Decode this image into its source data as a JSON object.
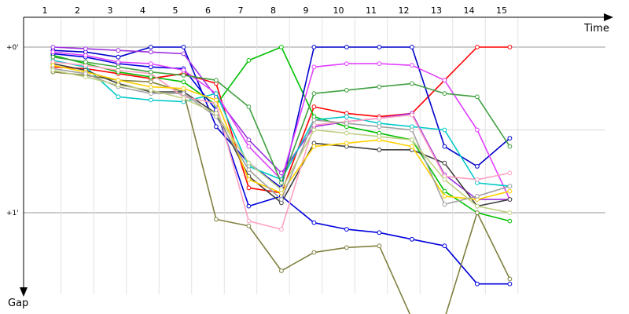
{
  "chart_data": {
    "type": "line",
    "x_axis_title": "Time",
    "y_axis_title": "Gap",
    "laps": [
      1,
      2,
      3,
      4,
      5,
      6,
      7,
      8,
      9,
      10,
      11,
      12,
      13,
      14,
      15
    ],
    "y_ticks": [
      {
        "value": 0,
        "label": "+0'"
      },
      {
        "value": 1,
        "label": "+1'"
      }
    ],
    "ylim": [
      -0.3,
      1.5
    ],
    "series": [
      {
        "color": "#ff0000",
        "values": [
          0.12,
          0.13,
          0.16,
          0.19,
          0.16,
          0.22,
          0.85,
          0.88,
          0.36,
          0.4,
          0.42,
          0.4,
          0.2,
          0.0,
          0.0
        ]
      },
      {
        "color": "#00c000",
        "values": [
          0.05,
          0.1,
          0.15,
          0.18,
          0.21,
          0.35,
          0.08,
          0.0,
          0.42,
          0.48,
          0.52,
          0.56,
          0.87,
          1.0,
          1.05
        ]
      },
      {
        "color": "#0000cc",
        "values": [
          0.02,
          0.03,
          0.06,
          0.0,
          0.0,
          0.48,
          0.7,
          0.85,
          0.0,
          0.0,
          0.0,
          0.0,
          0.6,
          0.72,
          0.55
        ]
      },
      {
        "color": "#0000dd",
        "values": [
          0.04,
          0.06,
          0.1,
          0.12,
          0.13,
          0.38,
          0.96,
          0.9,
          1.06,
          1.1,
          1.12,
          1.16,
          1.2,
          1.43,
          1.43
        ]
      },
      {
        "color": "#a030e0",
        "values": [
          0.0,
          0.01,
          0.02,
          0.03,
          0.04,
          0.3,
          0.56,
          0.76,
          0.48,
          0.45,
          0.43,
          0.4,
          0.77,
          0.92,
          0.92
        ]
      },
      {
        "color": "#e040ff",
        "values": [
          0.03,
          0.05,
          0.09,
          0.1,
          0.14,
          0.28,
          0.6,
          0.8,
          0.12,
          0.1,
          0.1,
          0.11,
          0.2,
          0.5,
          0.92
        ]
      },
      {
        "color": "#00c8c8",
        "values": [
          0.08,
          0.12,
          0.3,
          0.32,
          0.33,
          0.28,
          0.72,
          0.8,
          0.44,
          0.42,
          0.46,
          0.48,
          0.5,
          0.82,
          0.84
        ]
      },
      {
        "color": "#808040",
        "values": [
          0.15,
          0.17,
          0.2,
          0.21,
          0.27,
          1.04,
          1.08,
          1.35,
          1.24,
          1.21,
          1.2,
          1.64,
          1.64,
          1.0,
          1.4
        ]
      },
      {
        "color": "#404040",
        "values": [
          0.1,
          0.14,
          0.22,
          0.27,
          0.27,
          0.4,
          0.78,
          0.94,
          0.58,
          0.6,
          0.62,
          0.62,
          0.7,
          0.96,
          0.92
        ]
      },
      {
        "color": "#ffa0c0",
        "values": [
          0.09,
          0.11,
          0.14,
          0.16,
          0.3,
          0.34,
          1.05,
          1.1,
          0.47,
          0.45,
          0.43,
          0.41,
          0.78,
          0.8,
          0.76
        ]
      },
      {
        "color": "#ffd000",
        "values": [
          0.11,
          0.15,
          0.2,
          0.24,
          0.25,
          0.32,
          0.8,
          0.88,
          0.6,
          0.58,
          0.56,
          0.6,
          0.9,
          0.92,
          0.87
        ]
      },
      {
        "color": "#40a040",
        "values": [
          0.06,
          0.09,
          0.12,
          0.15,
          0.17,
          0.2,
          0.36,
          0.82,
          0.28,
          0.26,
          0.24,
          0.22,
          0.28,
          0.3,
          0.6
        ]
      },
      {
        "color": "#a0a0a0",
        "values": [
          0.13,
          0.16,
          0.24,
          0.28,
          0.28,
          0.42,
          0.74,
          0.92,
          0.44,
          0.46,
          0.48,
          0.5,
          0.95,
          0.9,
          0.84
        ]
      },
      {
        "color": "#c0d080",
        "values": [
          0.14,
          0.18,
          0.23,
          0.26,
          0.31,
          0.4,
          0.7,
          0.86,
          0.5,
          0.52,
          0.54,
          0.56,
          0.8,
          0.96,
          1.0
        ]
      }
    ]
  }
}
